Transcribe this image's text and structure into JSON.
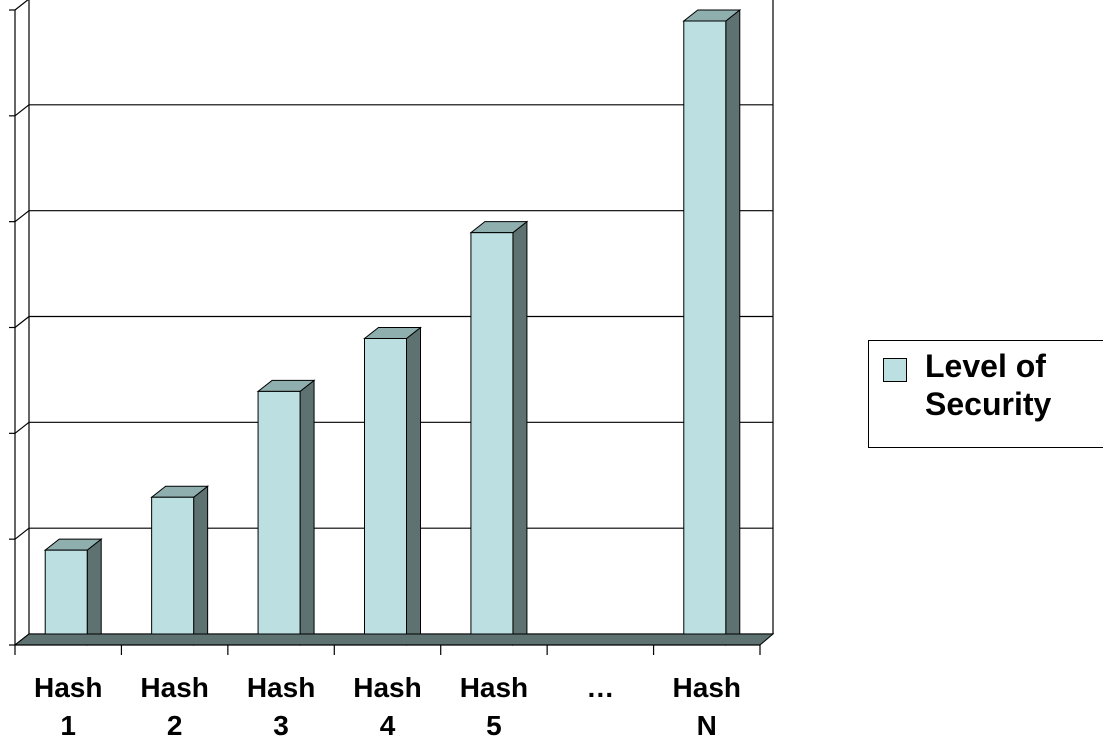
{
  "chart_data": {
    "type": "bar",
    "categories": [
      [
        "Hash",
        "1"
      ],
      [
        "Hash",
        "2"
      ],
      [
        "Hash",
        "3"
      ],
      [
        "Hash",
        "4"
      ],
      [
        "Hash",
        "5"
      ],
      [
        "…"
      ],
      [
        "Hash",
        "N"
      ]
    ],
    "series": [
      {
        "name": "Level of\nSecurity",
        "values": [
          1,
          1.5,
          2.5,
          3,
          4,
          0,
          6
        ]
      }
    ],
    "ylim": [
      0,
      6
    ],
    "grid": true,
    "legend_position": "right",
    "colors": {
      "bar_face": "#BCE0E2",
      "bar_side": "#5F7272",
      "bar_top": "#8FAFAF",
      "floor": "#5F7272"
    }
  }
}
